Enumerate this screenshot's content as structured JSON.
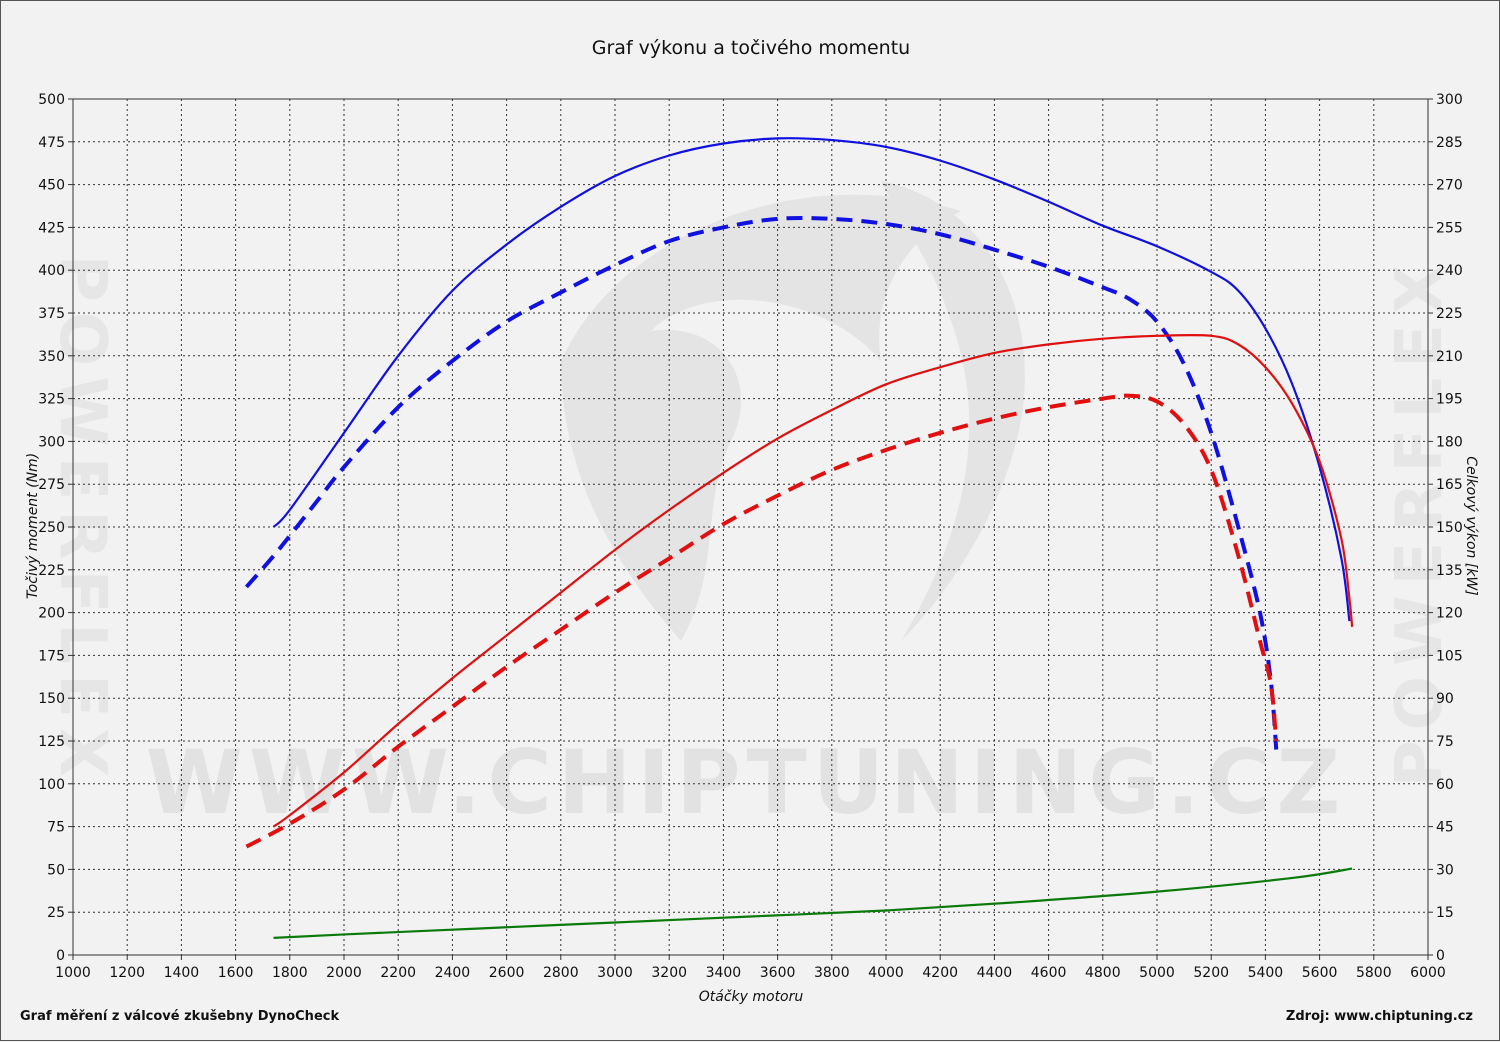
{
  "chart_data": {
    "type": "line",
    "title": "Graf výkonu a točivého momentu",
    "xlabel": "Otáčky motoru",
    "ylabel_left": "Točivý moment (Nm)",
    "ylabel_right": "Celkový výkon [kW]",
    "xlim": [
      1000,
      6000
    ],
    "ylim_left": [
      0,
      500
    ],
    "ylim_right": [
      0,
      300
    ],
    "x_ticks": [
      1000,
      1200,
      1400,
      1600,
      1800,
      2000,
      2200,
      2400,
      2600,
      2800,
      3000,
      3200,
      3400,
      3600,
      3800,
      4000,
      4200,
      4400,
      4600,
      4800,
      5000,
      5200,
      5400,
      5600,
      5800,
      6000
    ],
    "y_ticks_left": [
      0,
      25,
      50,
      75,
      100,
      125,
      150,
      175,
      200,
      225,
      250,
      275,
      300,
      325,
      350,
      375,
      400,
      425,
      450,
      475,
      500
    ],
    "y_ticks_right": [
      0,
      15,
      30,
      45,
      60,
      75,
      90,
      105,
      120,
      135,
      150,
      165,
      180,
      195,
      210,
      225,
      240,
      255,
      270,
      285,
      300
    ],
    "grid": true,
    "series": [
      {
        "axis": "left",
        "color": "#1010e0",
        "style": "solid",
        "points": [
          [
            1740,
            250
          ],
          [
            1800,
            260
          ],
          [
            2000,
            305
          ],
          [
            2200,
            350
          ],
          [
            2400,
            388
          ],
          [
            2600,
            415
          ],
          [
            2800,
            437
          ],
          [
            3000,
            455
          ],
          [
            3200,
            467
          ],
          [
            3400,
            474
          ],
          [
            3600,
            477
          ],
          [
            3800,
            476
          ],
          [
            4000,
            472
          ],
          [
            4200,
            464
          ],
          [
            4400,
            453
          ],
          [
            4600,
            440
          ],
          [
            4800,
            426
          ],
          [
            5000,
            414
          ],
          [
            5200,
            399
          ],
          [
            5300,
            388
          ],
          [
            5400,
            366
          ],
          [
            5500,
            333
          ],
          [
            5600,
            285
          ],
          [
            5680,
            232
          ],
          [
            5710,
            195
          ]
        ]
      },
      {
        "axis": "left",
        "color": "#1010e0",
        "style": "dashed",
        "points": [
          [
            1640,
            215
          ],
          [
            1750,
            235
          ],
          [
            1900,
            265
          ],
          [
            2000,
            285
          ],
          [
            2200,
            320
          ],
          [
            2400,
            347
          ],
          [
            2600,
            370
          ],
          [
            2800,
            387
          ],
          [
            3000,
            403
          ],
          [
            3200,
            417
          ],
          [
            3400,
            425
          ],
          [
            3600,
            430
          ],
          [
            3800,
            430
          ],
          [
            4000,
            427
          ],
          [
            4200,
            421
          ],
          [
            4400,
            412
          ],
          [
            4600,
            402
          ],
          [
            4800,
            390
          ],
          [
            4900,
            383
          ],
          [
            5000,
            370
          ],
          [
            5100,
            345
          ],
          [
            5200,
            305
          ],
          [
            5300,
            250
          ],
          [
            5380,
            200
          ],
          [
            5420,
            160
          ],
          [
            5440,
            120
          ]
        ]
      },
      {
        "axis": "right",
        "color": "#e01010",
        "style": "solid",
        "points": [
          [
            1740,
            45
          ],
          [
            1800,
            49
          ],
          [
            2000,
            64
          ],
          [
            2200,
            81
          ],
          [
            2400,
            97
          ],
          [
            2600,
            112
          ],
          [
            2800,
            127
          ],
          [
            3000,
            142
          ],
          [
            3200,
            156
          ],
          [
            3400,
            169
          ],
          [
            3600,
            181
          ],
          [
            3800,
            191
          ],
          [
            4000,
            200
          ],
          [
            4200,
            206
          ],
          [
            4400,
            211
          ],
          [
            4600,
            214
          ],
          [
            4800,
            216
          ],
          [
            5000,
            217
          ],
          [
            5200,
            217
          ],
          [
            5300,
            214
          ],
          [
            5400,
            206
          ],
          [
            5500,
            193
          ],
          [
            5600,
            173
          ],
          [
            5680,
            146
          ],
          [
            5710,
            125
          ],
          [
            5720,
            115
          ]
        ]
      },
      {
        "axis": "right",
        "color": "#e01010",
        "style": "dashed",
        "points": [
          [
            1640,
            38
          ],
          [
            1800,
            46
          ],
          [
            2000,
            58
          ],
          [
            2200,
            73
          ],
          [
            2400,
            87
          ],
          [
            2600,
            101
          ],
          [
            2800,
            114
          ],
          [
            3000,
            127
          ],
          [
            3200,
            139
          ],
          [
            3400,
            151
          ],
          [
            3600,
            161
          ],
          [
            3800,
            170
          ],
          [
            4000,
            177
          ],
          [
            4200,
            183
          ],
          [
            4400,
            188
          ],
          [
            4600,
            192
          ],
          [
            4800,
            195
          ],
          [
            4900,
            196
          ],
          [
            5000,
            194
          ],
          [
            5100,
            186
          ],
          [
            5200,
            170
          ],
          [
            5300,
            140
          ],
          [
            5380,
            110
          ],
          [
            5420,
            95
          ],
          [
            5440,
            75
          ]
        ]
      },
      {
        "axis": "left",
        "color": "#0a7a0a",
        "style": "solid",
        "points": [
          [
            1740,
            10
          ],
          [
            2000,
            12
          ],
          [
            2500,
            15.5
          ],
          [
            3000,
            19
          ],
          [
            3500,
            22.5
          ],
          [
            4000,
            26
          ],
          [
            4500,
            31
          ],
          [
            5000,
            37
          ],
          [
            5500,
            45
          ],
          [
            5720,
            50.5
          ]
        ]
      }
    ]
  },
  "footer": {
    "left": "Graf měření z válcové zkušebny DynoCheck",
    "right": "Zdroj: www.chiptuning.cz"
  },
  "watermark": {
    "center": "WWW.CHIPTUNING.CZ",
    "side": "POWERFLEX"
  }
}
